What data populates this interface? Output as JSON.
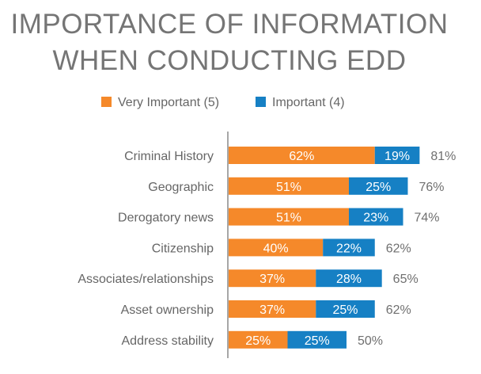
{
  "chart_data": {
    "type": "bar",
    "orientation": "horizontal",
    "stacked": true,
    "title": "IMPORTANCE OF INFORMATION WHEN CONDUCTING EDD",
    "title_lines": [
      "IMPORTANCE OF INFORMATION",
      "WHEN CONDUCTING EDD"
    ],
    "categories": [
      "Criminal History",
      "Geographic",
      "Derogatory news",
      "Citizenship",
      "Associates/relationships",
      "Asset ownership",
      "Address stability"
    ],
    "series": [
      {
        "name": "Very Important (5)",
        "color": "#F5892A",
        "values": [
          62,
          51,
          51,
          40,
          37,
          37,
          25
        ],
        "labels": [
          "62%",
          "51%",
          "51%",
          "40%",
          "37%",
          "37%",
          "25%"
        ]
      },
      {
        "name": "Important (4)",
        "color": "#1680C4",
        "values": [
          19,
          25,
          23,
          22,
          28,
          25,
          25
        ],
        "labels": [
          "19%",
          "25%",
          "23%",
          "22%",
          "28%",
          "25%",
          "25%"
        ]
      }
    ],
    "totals": [
      81,
      76,
      74,
      62,
      65,
      62,
      50
    ],
    "total_labels": [
      "81%",
      "76%",
      "74%",
      "62%",
      "65%",
      "62%",
      "50%"
    ],
    "xlim": [
      0,
      100
    ],
    "legend_position": "top",
    "grid": false
  }
}
